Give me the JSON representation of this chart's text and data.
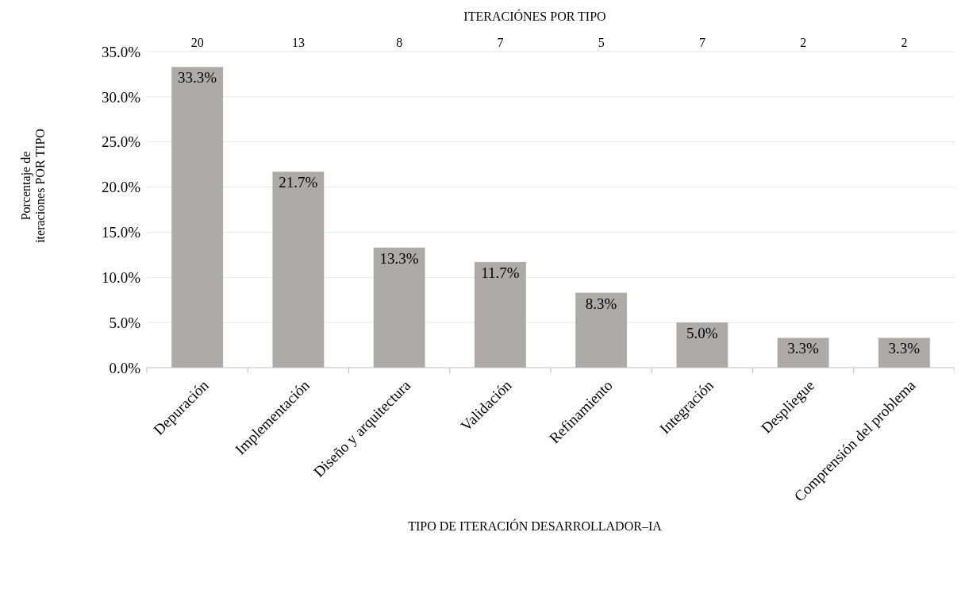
{
  "chart_data": {
    "type": "bar",
    "title": "ITERACIÓNES POR TIPO",
    "xlabel": "TIPO DE ITERACIÓN DESARROLLADOR–IA",
    "ylabel": "Porcentaje de\niteraciones POR TIPO",
    "categories": [
      "Depuración",
      "Implementación",
      "Diseño y arquitectura",
      "Validación",
      "Refinamiento",
      "Integración",
      "Despliegue",
      "Comprensión del problema"
    ],
    "values": [
      33.3,
      21.7,
      13.3,
      11.7,
      8.3,
      5.0,
      3.3,
      3.3
    ],
    "value_labels": [
      "33.3%",
      "21.7%",
      "13.3%",
      "11.7%",
      "8.3%",
      "5.0%",
      "3.3%",
      "3.3%"
    ],
    "color": "#aeaaaa",
    "ylim": [
      0,
      35
    ],
    "yticks": [
      {
        "value": 0,
        "label": "0.0%"
      },
      {
        "value": 5,
        "label": "5.0%"
      },
      {
        "value": 10,
        "label": "10.0%"
      },
      {
        "value": 15,
        "label": "15.0%"
      },
      {
        "value": 20,
        "label": "20.0%"
      },
      {
        "value": 25,
        "label": "25.0%"
      },
      {
        "value": 30,
        "label": "30.0%"
      },
      {
        "value": 35,
        "label": "35.0%"
      }
    ],
    "grid": "y",
    "annotations": [
      "20",
      "13",
      "8",
      "7",
      "5",
      "7",
      "2",
      "2"
    ]
  }
}
